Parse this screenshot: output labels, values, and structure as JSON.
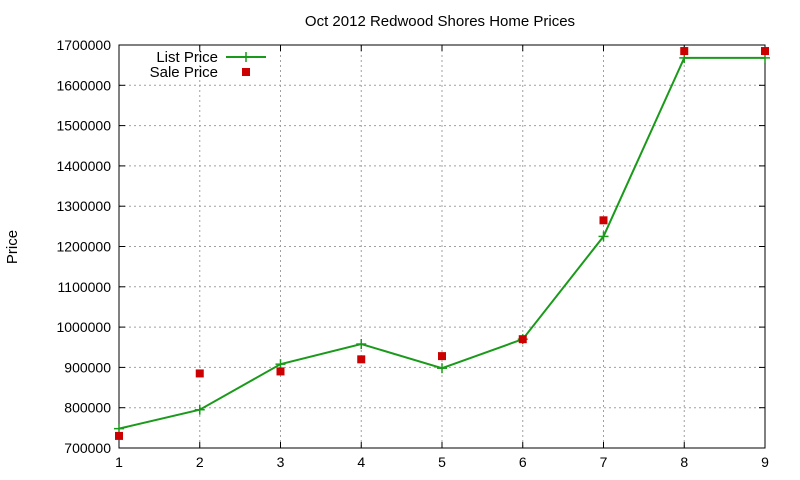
{
  "chart_data": {
    "type": "line",
    "title": "Oct 2012 Redwood Shores Home Prices",
    "xlabel": "",
    "ylabel": "Price",
    "xlim": [
      1,
      9
    ],
    "ylim": [
      700000,
      1700000
    ],
    "x_ticks": [
      "1",
      "2",
      "3",
      "4",
      "5",
      "6",
      "7",
      "8",
      "9"
    ],
    "y_ticks": [
      "700000",
      "800000",
      "900000",
      "1000000",
      "1100000",
      "1200000",
      "1300000",
      "1400000",
      "1500000",
      "1600000",
      "1700000"
    ],
    "grid": true,
    "legend_position": "top-left",
    "x": [
      1,
      2,
      3,
      4,
      5,
      6,
      7,
      8,
      9
    ],
    "series": [
      {
        "name": "List Price",
        "style": "line+cross",
        "color": "#1a9a1a",
        "values": [
          748000,
          795000,
          908000,
          958000,
          898000,
          970000,
          1225000,
          1668000,
          1668000
        ]
      },
      {
        "name": "Sale Price",
        "style": "square-points",
        "color": "#cc0000",
        "values": [
          730000,
          885000,
          890000,
          920000,
          928000,
          970000,
          1265000,
          1685000,
          1685000
        ]
      }
    ]
  }
}
